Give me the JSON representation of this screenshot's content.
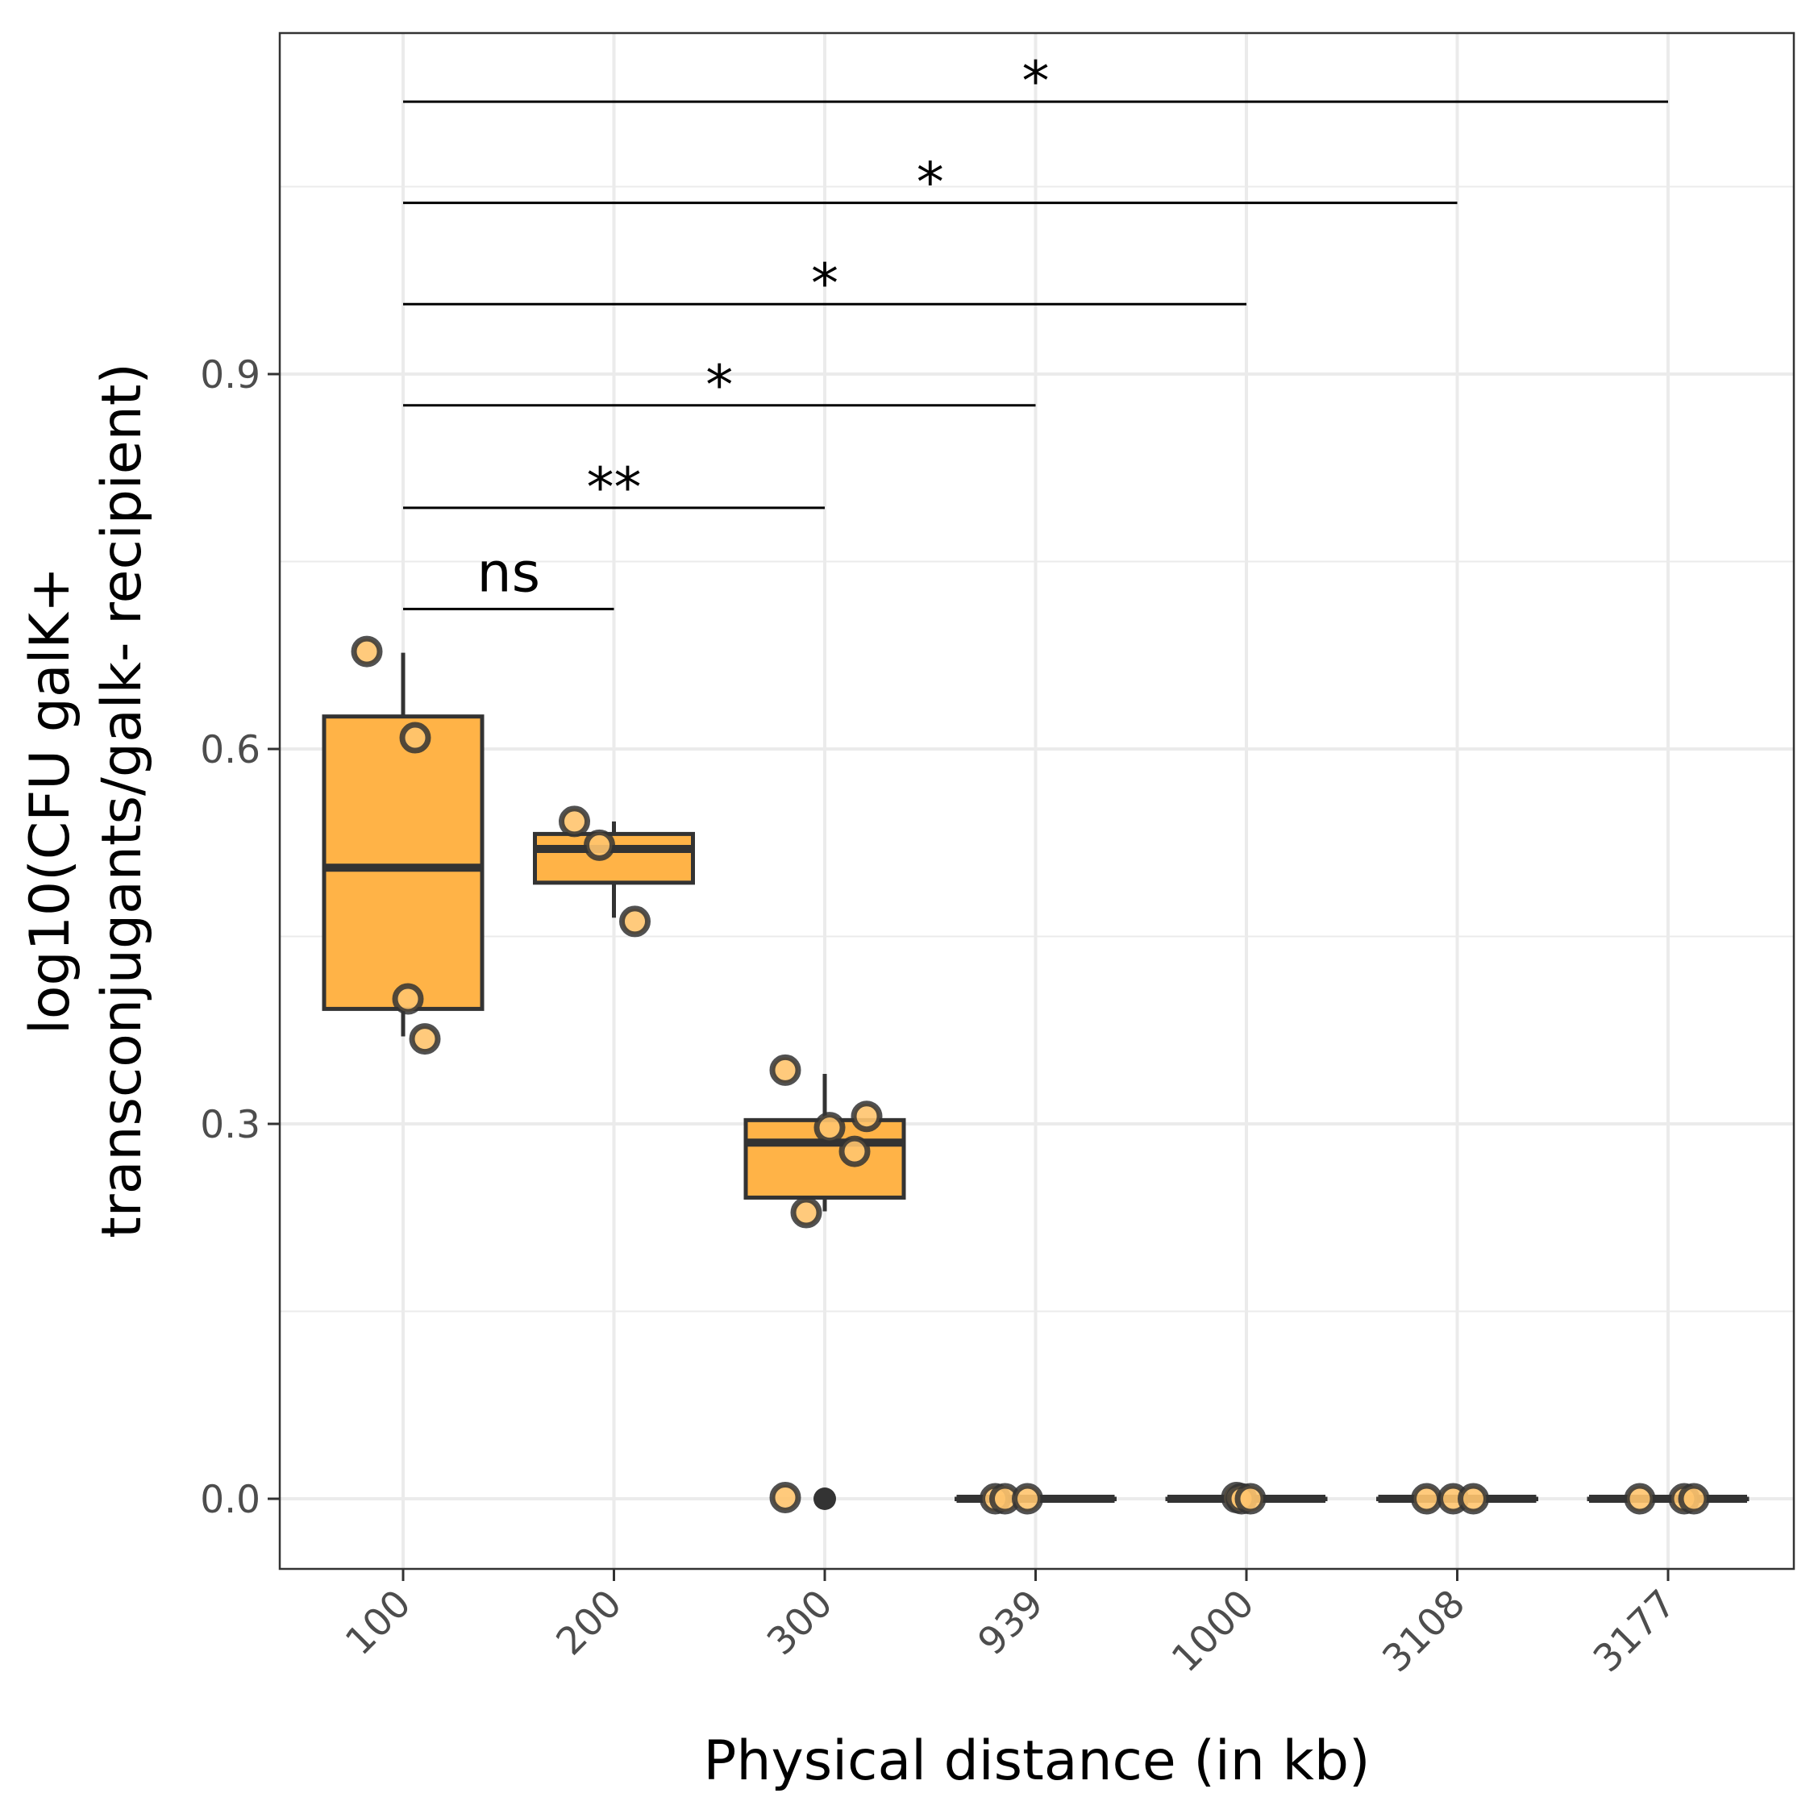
{
  "chart_data": {
    "type": "box",
    "title": "",
    "xlabel": "Physical distance (in kb)",
    "ylabel_lines": [
      "log10(CFU galK+",
      "transconjugants/galk- recipient)"
    ],
    "categories": [
      "100",
      "200",
      "300",
      "939",
      "1000",
      "3108",
      "3177"
    ],
    "ylim": [
      -0.055,
      1.175
    ],
    "yticks": [
      0.0,
      0.3,
      0.6,
      0.9
    ],
    "ytick_labels": [
      "0.0",
      "0.3",
      "0.6",
      "0.9"
    ],
    "grid": true,
    "fill_color": "#FFB347",
    "point_fill_color": "#FFC46E",
    "outline_color": "#333333",
    "boxes": [
      {
        "category": "100",
        "q1": 0.392,
        "median": 0.505,
        "q3": 0.626,
        "whisker_low": 0.37,
        "whisker_high": 0.677,
        "outliers": []
      },
      {
        "category": "200",
        "q1": 0.493,
        "median": 0.52,
        "q3": 0.532,
        "whisker_low": 0.465,
        "whisker_high": 0.542,
        "outliers": []
      },
      {
        "category": "300",
        "q1": 0.241,
        "median": 0.285,
        "q3": 0.303,
        "whisker_low": 0.23,
        "whisker_high": 0.34,
        "outliers": [
          0.0
        ]
      },
      {
        "category": "939",
        "q1": 0.0,
        "median": 0.0,
        "q3": 0.0,
        "whisker_low": 0.0,
        "whisker_high": 0.0,
        "outliers": []
      },
      {
        "category": "1000",
        "q1": 0.0,
        "median": 0.0,
        "q3": 0.0,
        "whisker_low": 0.0,
        "whisker_high": 0.0,
        "outliers": []
      },
      {
        "category": "3108",
        "q1": 0.0,
        "median": 0.0,
        "q3": 0.0,
        "whisker_low": 0.0,
        "whisker_high": 0.0,
        "outliers": []
      },
      {
        "category": "3177",
        "q1": 0.0,
        "median": 0.0,
        "q3": 0.0,
        "whisker_low": 0.0,
        "whisker_high": 0.0,
        "outliers": []
      }
    ],
    "points": [
      {
        "category": "100",
        "values": [
          0.678,
          0.609,
          0.4,
          0.368
        ]
      },
      {
        "category": "200",
        "values": [
          0.542,
          0.523,
          0.462
        ]
      },
      {
        "category": "300",
        "values": [
          0.343,
          0.297,
          0.306,
          0.278,
          0.229,
          0.001
        ]
      },
      {
        "category": "939",
        "values": [
          0.0,
          0.0,
          0.0
        ]
      },
      {
        "category": "1000",
        "values": [
          0.001,
          0.0,
          0.0
        ]
      },
      {
        "category": "3108",
        "values": [
          0.0,
          0.0,
          0.0
        ]
      },
      {
        "category": "3177",
        "values": [
          0.0,
          0.0,
          0.0
        ]
      }
    ],
    "comparisons": [
      {
        "from": "100",
        "to": "200",
        "label": "ns",
        "y": 0.712
      },
      {
        "from": "100",
        "to": "300",
        "label": "**",
        "y": 0.793
      },
      {
        "from": "100",
        "to": "939",
        "label": "*",
        "y": 0.875
      },
      {
        "from": "100",
        "to": "1000",
        "label": "*",
        "y": 0.956
      },
      {
        "from": "100",
        "to": "3108",
        "label": "*",
        "y": 1.037
      },
      {
        "from": "100",
        "to": "3177",
        "label": "*",
        "y": 1.118
      }
    ]
  }
}
